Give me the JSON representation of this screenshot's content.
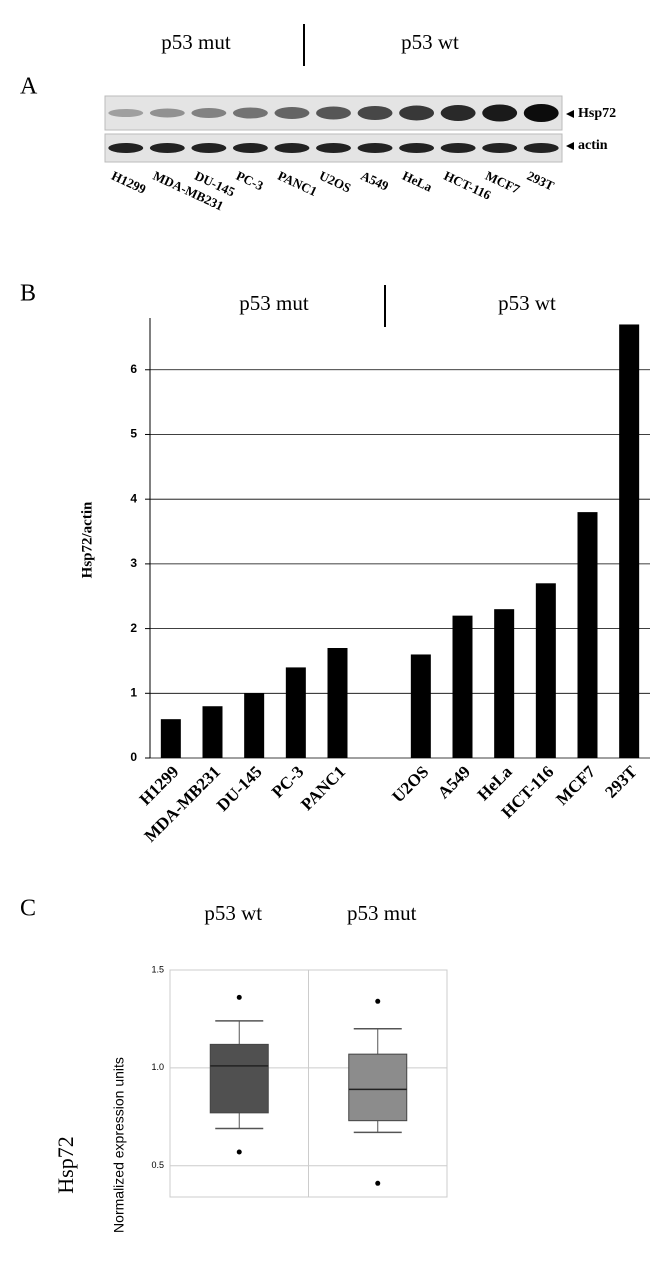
{
  "panel_a": {
    "label": "A",
    "groups": [
      "p53 mut",
      "p53 wt"
    ],
    "bands": [
      "Hsp72",
      "actin"
    ],
    "lanes": [
      "H1299",
      "MDA-MB231",
      "DU-145",
      "PC-3",
      "PANC1",
      "U2OS",
      "A549",
      "HeLa",
      "HCT-116",
      "MCF7",
      "293T"
    ]
  },
  "chart_data": [
    {
      "type": "bar",
      "panel_label": "B",
      "annotations": [
        "p53 mut",
        "p53 wt"
      ],
      "y_label": "Hsp72/actin",
      "categories": [
        "H1299",
        "MDA-MB231",
        "DU-145",
        "PC-3",
        "PANC1",
        null,
        "U2OS",
        "A549",
        "HeLa",
        "HCT-116",
        "MCF7",
        "293T"
      ],
      "values": [
        0.6,
        0.8,
        1.0,
        1.4,
        1.7,
        null,
        1.6,
        2.2,
        2.3,
        2.7,
        3.8,
        6.7
      ],
      "color": "#000000",
      "ylim": [
        0,
        6.8
      ],
      "yticks": [
        0,
        1,
        2,
        3,
        4,
        5,
        6
      ],
      "grid": true
    },
    {
      "type": "box",
      "panel_label": "C",
      "side_label": "Hsp72",
      "y_label": "Normalized expression units",
      "categories": [
        "p53 wt",
        "p53 mut"
      ],
      "colors": [
        "#505050",
        "#8c8c8c"
      ],
      "boxes": [
        {
          "whisker_low": 0.69,
          "q1": 0.77,
          "median": 1.01,
          "q3": 1.12,
          "whisker_high": 1.24,
          "outliers": [
            1.36,
            0.57
          ]
        },
        {
          "whisker_low": 0.67,
          "q1": 0.73,
          "median": 0.89,
          "q3": 1.07,
          "whisker_high": 1.2,
          "outliers": [
            1.34,
            0.41
          ]
        }
      ],
      "ylim": [
        0.34,
        1.5
      ],
      "yticks": [
        0.5,
        {
          "value": 1,
          "label": "1.0"
        },
        1.5
      ],
      "grid": true
    }
  ]
}
